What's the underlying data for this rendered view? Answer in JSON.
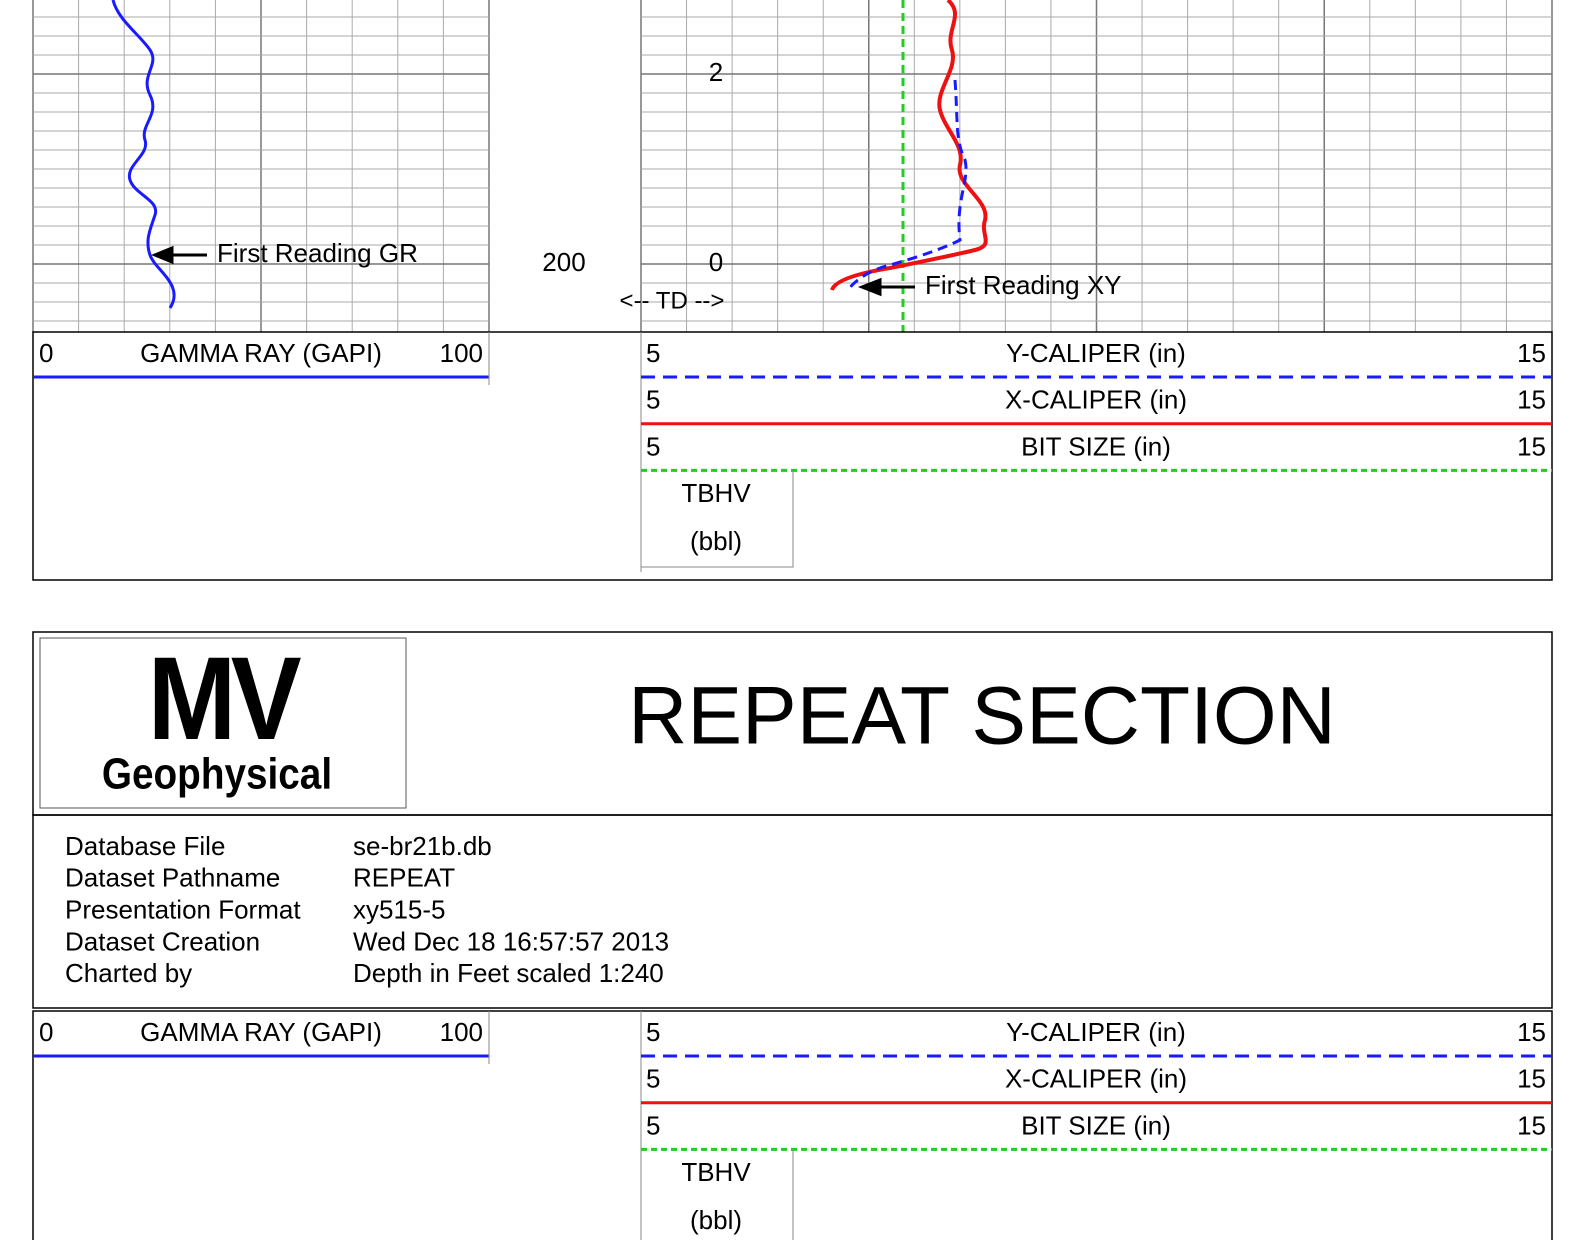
{
  "log": {
    "depth_label": 200,
    "scale_labels": [
      2,
      0
    ],
    "td_marker": "<-- TD -->",
    "annotations": [
      "First Reading GR",
      "First Reading XY"
    ]
  },
  "scale_headers": [
    {
      "gamma": {
        "min": 0,
        "name": "GAMMA RAY (GAPI)",
        "max": 100
      },
      "calipers": [
        {
          "min": 5,
          "name": "Y-CALIPER (in)",
          "max": 15
        },
        {
          "min": 5,
          "name": "X-CALIPER (in)",
          "max": 15
        },
        {
          "min": 5,
          "name": "BIT SIZE (in)",
          "max": 15
        }
      ],
      "volume": {
        "name": "TBHV",
        "unit": "(bbl)"
      }
    },
    {
      "gamma": {
        "min": 0,
        "name": "GAMMA RAY (GAPI)",
        "max": 100
      },
      "calipers": [
        {
          "min": 5,
          "name": "Y-CALIPER (in)",
          "max": 15
        },
        {
          "min": 5,
          "name": "X-CALIPER (in)",
          "max": 15
        },
        {
          "min": 5,
          "name": "BIT SIZE (in)",
          "max": 15
        }
      ],
      "volume": {
        "name": "TBHV",
        "unit": "(bbl)"
      }
    }
  ],
  "header": {
    "logo": {
      "mark": "MV",
      "name": "Geophysical"
    },
    "title": "REPEAT SECTION"
  },
  "info": {
    "rows": [
      [
        "Database File",
        "se-br21b.db"
      ],
      [
        "Dataset Pathname",
        "REPEAT"
      ],
      [
        "Presentation Format",
        "xy515-5"
      ],
      [
        "Dataset Creation",
        "Wed Dec 18 16:57:57 2013"
      ],
      [
        "Charted by",
        "Depth in Feet scaled 1:240"
      ]
    ]
  }
}
